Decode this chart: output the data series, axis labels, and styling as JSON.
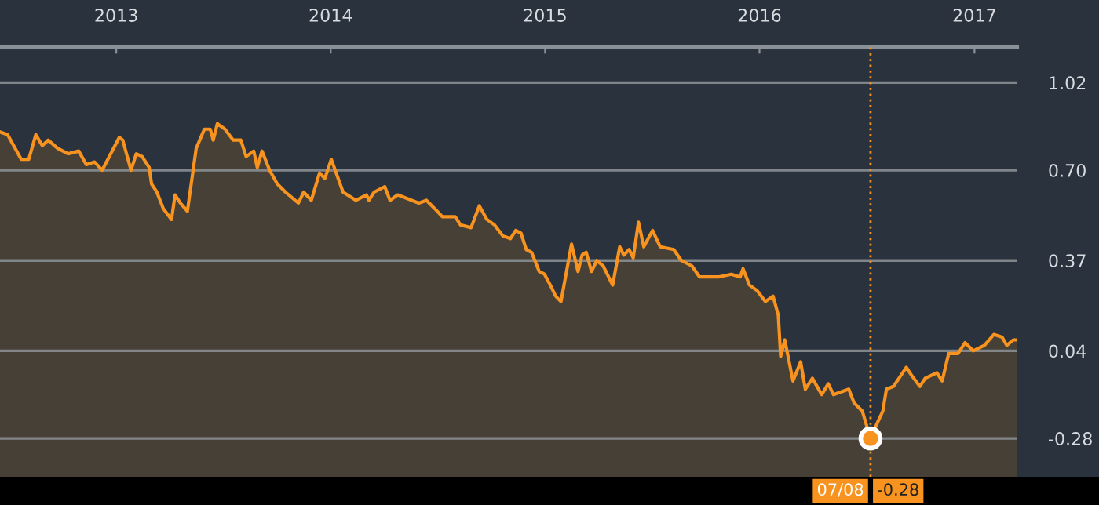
{
  "chart_data": {
    "type": "area",
    "x": [
      "2012-06-17",
      "2012-06-30",
      "2012-07-23",
      "2012-08-05",
      "2012-08-17",
      "2012-08-28",
      "2012-09-07",
      "2012-09-23",
      "2012-10-11",
      "2012-10-29",
      "2012-11-11",
      "2012-11-25",
      "2012-12-08",
      "2013-01-06",
      "2013-01-12",
      "2013-01-26",
      "2013-02-04",
      "2013-02-14",
      "2013-02-26",
      "2013-03-02",
      "2013-03-11",
      "2013-03-22",
      "2013-04-05",
      "2013-04-11",
      "2013-04-20",
      "2013-05-02",
      "2013-05-17",
      "2013-05-31",
      "2013-06-10",
      "2013-06-15",
      "2013-06-22",
      "2013-07-05",
      "2013-07-19",
      "2013-08-01",
      "2013-08-10",
      "2013-08-23",
      "2013-08-29",
      "2013-09-06",
      "2013-09-19",
      "2013-10-02",
      "2013-10-16",
      "2013-11-07",
      "2013-11-16",
      "2013-11-29",
      "2013-12-13",
      "2013-12-22",
      "2014-01-02",
      "2014-01-22",
      "2014-02-13",
      "2014-03-03",
      "2014-03-07",
      "2014-03-16",
      "2014-04-03",
      "2014-04-12",
      "2014-04-25",
      "2014-05-31",
      "2014-06-13",
      "2014-06-27",
      "2014-07-10",
      "2014-08-01",
      "2014-08-10",
      "2014-08-28",
      "2014-09-11",
      "2014-09-24",
      "2014-10-07",
      "2014-10-21",
      "2014-11-03",
      "2014-11-12",
      "2014-11-21",
      "2014-11-30",
      "2014-12-09",
      "2014-12-22",
      "2014-12-31",
      "2015-01-10",
      "2015-01-19",
      "2015-01-28",
      "2015-02-15",
      "2015-02-26",
      "2015-03-05",
      "2015-03-12",
      "2015-03-21",
      "2015-03-30",
      "2015-04-10",
      "2015-04-26",
      "2015-05-08",
      "2015-05-15",
      "2015-05-24",
      "2015-05-31",
      "2015-06-09",
      "2015-06-18",
      "2015-07-03",
      "2015-07-16",
      "2015-08-08",
      "2015-08-21",
      "2015-09-08",
      "2015-09-21",
      "2015-10-23",
      "2015-11-14",
      "2015-11-29",
      "2015-12-04",
      "2015-12-15",
      "2015-12-28",
      "2016-01-11",
      "2016-01-24",
      "2016-02-02",
      "2016-02-06",
      "2016-02-13",
      "2016-02-27",
      "2016-03-11",
      "2016-03-19",
      "2016-03-31",
      "2016-04-16",
      "2016-04-27",
      "2016-05-06",
      "2016-06-01",
      "2016-06-10",
      "2016-06-24",
      "2016-07-08",
      "2016-07-16",
      "2016-07-29",
      "2016-08-04",
      "2016-08-16",
      "2016-09-07",
      "2016-09-16",
      "2016-09-30",
      "2016-10-09",
      "2016-10-29",
      "2016-11-07",
      "2016-11-18",
      "2016-12-04",
      "2016-12-16",
      "2016-12-30",
      "2017-01-18",
      "2017-02-03",
      "2017-02-17",
      "2017-02-25",
      "2017-03-08",
      "2017-03-15"
    ],
    "series": [
      {
        "color": "#f7931e",
        "values": [
          0.84,
          0.83,
          0.74,
          0.74,
          0.83,
          0.79,
          0.81,
          0.78,
          0.76,
          0.77,
          0.72,
          0.73,
          0.7,
          0.82,
          0.81,
          0.7,
          0.76,
          0.75,
          0.71,
          0.65,
          0.62,
          0.56,
          0.52,
          0.61,
          0.58,
          0.55,
          0.78,
          0.85,
          0.85,
          0.81,
          0.87,
          0.85,
          0.81,
          0.81,
          0.75,
          0.77,
          0.71,
          0.77,
          0.7,
          0.65,
          0.62,
          0.58,
          0.62,
          0.59,
          0.69,
          0.67,
          0.74,
          0.62,
          0.59,
          0.61,
          0.59,
          0.62,
          0.64,
          0.59,
          0.61,
          0.58,
          0.59,
          0.56,
          0.53,
          0.53,
          0.5,
          0.49,
          0.57,
          0.52,
          0.5,
          0.46,
          0.45,
          0.48,
          0.47,
          0.41,
          0.4,
          0.33,
          0.32,
          0.28,
          0.24,
          0.22,
          0.43,
          0.33,
          0.39,
          0.4,
          0.33,
          0.37,
          0.35,
          0.28,
          0.42,
          0.39,
          0.41,
          0.38,
          0.51,
          0.42,
          0.48,
          0.42,
          0.41,
          0.37,
          0.35,
          0.31,
          0.31,
          0.32,
          0.31,
          0.34,
          0.28,
          0.26,
          0.22,
          0.24,
          0.17,
          0.02,
          0.08,
          -0.07,
          0.0,
          -0.1,
          -0.06,
          -0.12,
          -0.08,
          -0.12,
          -0.1,
          -0.15,
          -0.18,
          -0.28,
          -0.24,
          -0.18,
          -0.1,
          -0.09,
          -0.02,
          -0.05,
          -0.09,
          -0.06,
          -0.04,
          -0.07,
          0.03,
          0.03,
          0.07,
          0.04,
          0.06,
          0.1,
          0.09,
          0.06,
          0.08,
          0.08
        ]
      }
    ],
    "xlim": [
      "2012-06-17",
      "2017-03-15"
    ],
    "xticks": [
      {
        "value": "2013-01-01",
        "label": "2013"
      },
      {
        "value": "2014-01-01",
        "label": "2014"
      },
      {
        "value": "2015-01-01",
        "label": "2015"
      },
      {
        "value": "2016-01-01",
        "label": "2016"
      },
      {
        "value": "2017-01-01",
        "label": "2017"
      }
    ],
    "ylim": [
      -0.42,
      1.15
    ],
    "yticks": [
      1.02,
      {
        "value": 0.7,
        "label": "0.70"
      },
      0.37,
      0.04,
      -0.28
    ],
    "grid": "y",
    "ref_lines": [
      {
        "axis": "x",
        "value": "2016-07-08",
        "label": "07/08",
        "color": "#f7931e",
        "line_style": "dotted"
      }
    ],
    "annotations": [
      {
        "text": "-0.28",
        "x": "2016-07-08",
        "y": -0.28
      }
    ]
  }
}
